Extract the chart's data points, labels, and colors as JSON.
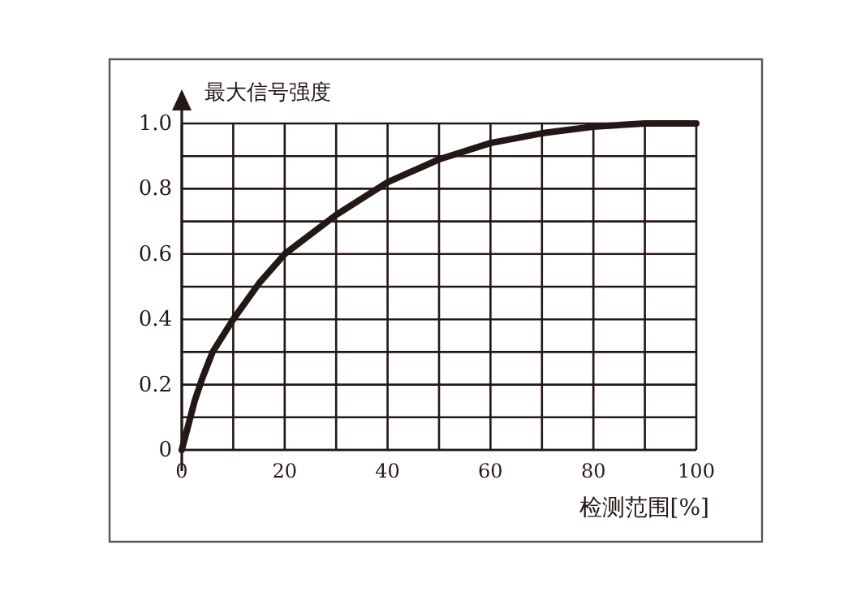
{
  "chart_data": {
    "type": "line",
    "xlabel": "检测范围[%]",
    "ylabel": "最大信号强度",
    "x": [
      0,
      1,
      2.5,
      4,
      6,
      10,
      15,
      20,
      30,
      40,
      50,
      60,
      70,
      80,
      90,
      100
    ],
    "series": [
      {
        "color": "#231815",
        "values": [
          0,
          0.06,
          0.15,
          0.22,
          0.3,
          0.4,
          0.51,
          0.6,
          0.72,
          0.82,
          0.89,
          0.94,
          0.97,
          0.99,
          1.0,
          1.0
        ]
      }
    ],
    "xlim": [
      0,
      100
    ],
    "ylim": [
      0,
      1
    ],
    "xticks": [
      0,
      {
        "value": 10,
        "label": null
      },
      20,
      {
        "value": 30,
        "label": null
      },
      40,
      {
        "value": 50,
        "label": null
      },
      60,
      {
        "value": 70,
        "label": null
      },
      80,
      {
        "value": 90,
        "label": null
      },
      100
    ],
    "yticks": [
      0,
      {
        "value": 0.1,
        "label": null
      },
      {
        "value": 0.2,
        "label": "0.2"
      },
      {
        "value": 0.3,
        "label": null
      },
      {
        "value": 0.4,
        "label": "0.4"
      },
      {
        "value": 0.5,
        "label": null
      },
      {
        "value": 0.6,
        "label": "0.6"
      },
      {
        "value": 0.7,
        "label": null
      },
      {
        "value": 0.8,
        "label": "0.8"
      },
      {
        "value": 0.9,
        "label": null
      },
      {
        "value": 1,
        "label": "1.0"
      }
    ],
    "grid": true,
    "marker": "none",
    "line_style": "solid"
  }
}
